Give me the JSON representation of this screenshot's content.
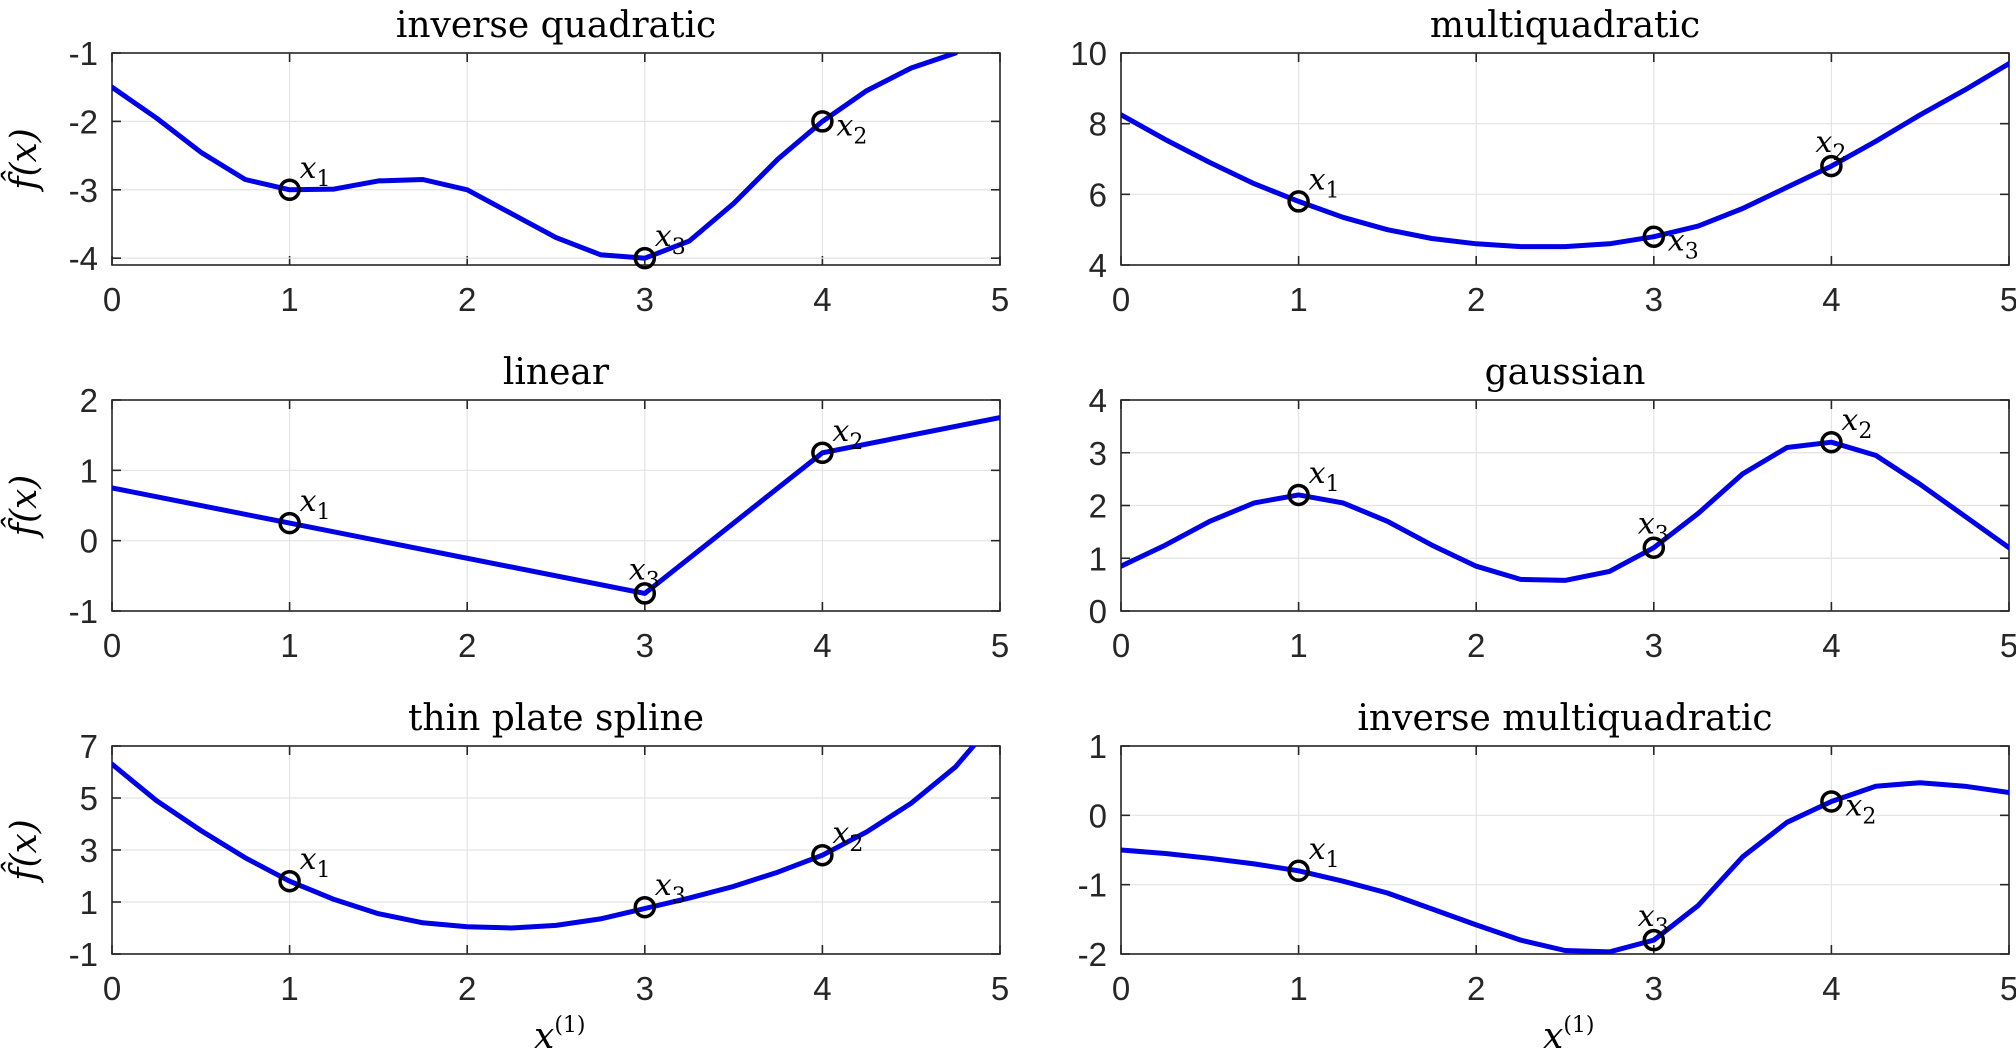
{
  "colors": {
    "curve": "#0000e6",
    "marker": "#000000",
    "grid": "#e3e3e3",
    "axis": "#262626"
  },
  "chart_data": [
    {
      "type": "line",
      "title": "inverse quadratic",
      "xlabel": "",
      "ylabel": "f̂(x)",
      "xlim": [
        0,
        5
      ],
      "ylim": [
        -4.1,
        -1
      ],
      "xticks": [
        "0",
        "1",
        "2",
        "3",
        "4",
        "5"
      ],
      "yticks": [
        "-1",
        "-2",
        "-3",
        "-4"
      ],
      "grid": true,
      "series": [
        {
          "x": [
            0,
            0.25,
            0.5,
            0.75,
            1.0,
            1.25,
            1.5,
            1.75,
            2.0,
            2.25,
            2.5,
            2.75,
            3.0,
            3.25,
            3.5,
            3.75,
            4.0,
            4.25,
            4.5,
            4.75
          ],
          "y": [
            -1.5,
            -1.95,
            -2.45,
            -2.85,
            -3.0,
            -2.99,
            -2.87,
            -2.85,
            -3.0,
            -3.35,
            -3.7,
            -3.95,
            -4.0,
            -3.75,
            -3.2,
            -2.55,
            -2.0,
            -1.55,
            -1.22,
            -1.0
          ]
        }
      ],
      "points": [
        {
          "label": "x",
          "sub": "1",
          "x": 1,
          "y": -3,
          "pos": "above-right"
        },
        {
          "label": "x",
          "sub": "2",
          "x": 4,
          "y": -2,
          "pos": "right"
        },
        {
          "label": "x",
          "sub": "3",
          "x": 3,
          "y": -4,
          "pos": "above-right"
        }
      ]
    },
    {
      "type": "line",
      "title": "multiquadratic",
      "xlabel": "",
      "ylabel": "",
      "xlim": [
        0,
        5
      ],
      "ylim": [
        4,
        10
      ],
      "xticks": [
        "0",
        "1",
        "2",
        "3",
        "4",
        "5"
      ],
      "yticks": [
        "10",
        "8",
        "6",
        "4"
      ],
      "grid": true,
      "series": [
        {
          "x": [
            0,
            0.25,
            0.5,
            0.75,
            1.0,
            1.25,
            1.5,
            1.75,
            2.0,
            2.25,
            2.5,
            2.75,
            3.0,
            3.25,
            3.5,
            3.75,
            4.0,
            4.25,
            4.5,
            4.75,
            5.0
          ],
          "y": [
            8.25,
            7.55,
            6.9,
            6.3,
            5.8,
            5.35,
            5.0,
            4.75,
            4.6,
            4.52,
            4.52,
            4.6,
            4.8,
            5.1,
            5.6,
            6.2,
            6.8,
            7.5,
            8.25,
            8.95,
            9.7
          ]
        }
      ],
      "points": [
        {
          "label": "x",
          "sub": "1",
          "x": 1,
          "y": 5.8,
          "pos": "above-right"
        },
        {
          "label": "x",
          "sub": "2",
          "x": 4,
          "y": 6.8,
          "pos": "above"
        },
        {
          "label": "x",
          "sub": "3",
          "x": 3,
          "y": 4.8,
          "pos": "right"
        }
      ]
    },
    {
      "type": "line",
      "title": "linear",
      "xlabel": "",
      "ylabel": "f̂(x)",
      "xlim": [
        0,
        5
      ],
      "ylim": [
        -1,
        2
      ],
      "xticks": [
        "0",
        "1",
        "2",
        "3",
        "4",
        "5"
      ],
      "yticks": [
        "2",
        "1",
        "0",
        "-1"
      ],
      "grid": true,
      "series": [
        {
          "x": [
            0,
            1,
            3,
            4,
            5
          ],
          "y": [
            0.75,
            0.25,
            -0.75,
            1.25,
            1.75
          ]
        }
      ],
      "points": [
        {
          "label": "x",
          "sub": "1",
          "x": 1,
          "y": 0.25,
          "pos": "above-right"
        },
        {
          "label": "x",
          "sub": "2",
          "x": 4,
          "y": 1.25,
          "pos": "above-right"
        },
        {
          "label": "x",
          "sub": "3",
          "x": 3,
          "y": -0.75,
          "pos": "above"
        }
      ]
    },
    {
      "type": "line",
      "title": "gaussian",
      "xlabel": "",
      "ylabel": "",
      "xlim": [
        0,
        5
      ],
      "ylim": [
        0,
        4
      ],
      "xticks": [
        "0",
        "1",
        "2",
        "3",
        "4",
        "5"
      ],
      "yticks": [
        "4",
        "3",
        "2",
        "1",
        "0"
      ],
      "grid": true,
      "series": [
        {
          "x": [
            0,
            0.25,
            0.5,
            0.75,
            1.0,
            1.25,
            1.5,
            1.75,
            2.0,
            2.25,
            2.5,
            2.75,
            3.0,
            3.25,
            3.5,
            3.75,
            4.0,
            4.25,
            4.5,
            4.75,
            5.0
          ],
          "y": [
            0.85,
            1.25,
            1.7,
            2.05,
            2.2,
            2.05,
            1.7,
            1.25,
            0.85,
            0.6,
            0.58,
            0.75,
            1.2,
            1.85,
            2.6,
            3.1,
            3.2,
            2.95,
            2.4,
            1.8,
            1.2
          ]
        }
      ],
      "points": [
        {
          "label": "x",
          "sub": "1",
          "x": 1,
          "y": 2.2,
          "pos": "above-right"
        },
        {
          "label": "x",
          "sub": "2",
          "x": 4,
          "y": 3.2,
          "pos": "above-right"
        },
        {
          "label": "x",
          "sub": "3",
          "x": 3,
          "y": 1.2,
          "pos": "above"
        }
      ]
    },
    {
      "type": "line",
      "title": "thin plate spline",
      "xlabel": "x(1)",
      "ylabel": "f̂(x)",
      "xlim": [
        0,
        5
      ],
      "ylim": [
        -1,
        7
      ],
      "xticks": [
        "0",
        "1",
        "2",
        "3",
        "4",
        "5"
      ],
      "yticks": [
        "7",
        "5",
        "3",
        "1",
        "-1"
      ],
      "grid": true,
      "series": [
        {
          "x": [
            0,
            0.25,
            0.5,
            0.75,
            1.0,
            1.25,
            1.5,
            1.75,
            2.0,
            2.25,
            2.5,
            2.75,
            3.0,
            3.25,
            3.5,
            3.75,
            4.0,
            4.25,
            4.5,
            4.75,
            4.85
          ],
          "y": [
            6.3,
            4.9,
            3.75,
            2.7,
            1.8,
            1.1,
            0.55,
            0.2,
            0.05,
            0.0,
            0.1,
            0.35,
            0.75,
            1.15,
            1.6,
            2.15,
            2.8,
            3.7,
            4.8,
            6.2,
            7.0
          ]
        }
      ],
      "points": [
        {
          "label": "x",
          "sub": "1",
          "x": 1,
          "y": 1.8,
          "pos": "above-right"
        },
        {
          "label": "x",
          "sub": "2",
          "x": 4,
          "y": 2.8,
          "pos": "above-right"
        },
        {
          "label": "x",
          "sub": "3",
          "x": 3,
          "y": 0.8,
          "pos": "above-right"
        }
      ]
    },
    {
      "type": "line",
      "title": "inverse multiquadratic",
      "xlabel": "x(1)",
      "ylabel": "",
      "xlim": [
        0,
        5
      ],
      "ylim": [
        -2,
        1
      ],
      "xticks": [
        "0",
        "1",
        "2",
        "3",
        "4",
        "5"
      ],
      "yticks": [
        "1",
        "0",
        "-1",
        "-2"
      ],
      "grid": true,
      "series": [
        {
          "x": [
            0,
            0.25,
            0.5,
            0.75,
            1.0,
            1.25,
            1.5,
            1.75,
            2.0,
            2.25,
            2.5,
            2.75,
            3.0,
            3.25,
            3.5,
            3.75,
            4.0,
            4.25,
            4.5,
            4.75,
            5.0
          ],
          "y": [
            -0.5,
            -0.55,
            -0.62,
            -0.7,
            -0.8,
            -0.95,
            -1.12,
            -1.35,
            -1.58,
            -1.8,
            -1.95,
            -1.97,
            -1.8,
            -1.3,
            -0.6,
            -0.1,
            0.2,
            0.42,
            0.47,
            0.42,
            0.33
          ]
        }
      ],
      "points": [
        {
          "label": "x",
          "sub": "1",
          "x": 1,
          "y": -0.8,
          "pos": "above-right"
        },
        {
          "label": "x",
          "sub": "2",
          "x": 4,
          "y": 0.2,
          "pos": "right"
        },
        {
          "label": "x",
          "sub": "3",
          "x": 3,
          "y": -1.8,
          "pos": "above"
        }
      ]
    }
  ]
}
